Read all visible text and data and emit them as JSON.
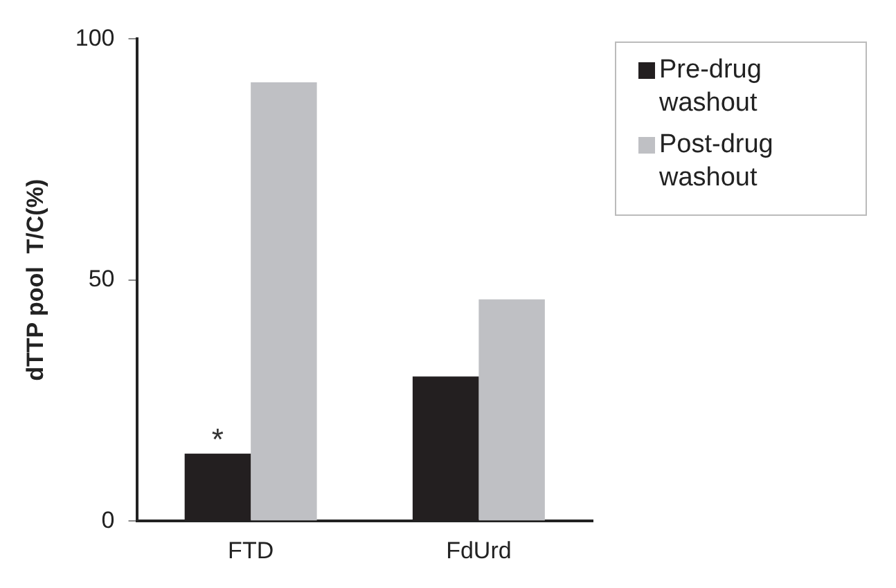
{
  "chart_data": {
    "type": "bar",
    "ylabel": "dTTP pool  T/C(%)",
    "categories": [
      "FTD",
      "FdUrd"
    ],
    "series": [
      {
        "name": "Pre-drug washout",
        "color": "#231f20",
        "values": [
          14,
          30
        ]
      },
      {
        "name": "Post-drug washout",
        "color": "#bfc0c4",
        "values": [
          91,
          46
        ]
      }
    ],
    "ylim": [
      0,
      100
    ],
    "yticks": [
      0,
      50,
      100
    ],
    "grid": false,
    "legend": "top right",
    "annotations": [
      {
        "text": "*",
        "x": "FTD",
        "y": 14
      }
    ]
  }
}
